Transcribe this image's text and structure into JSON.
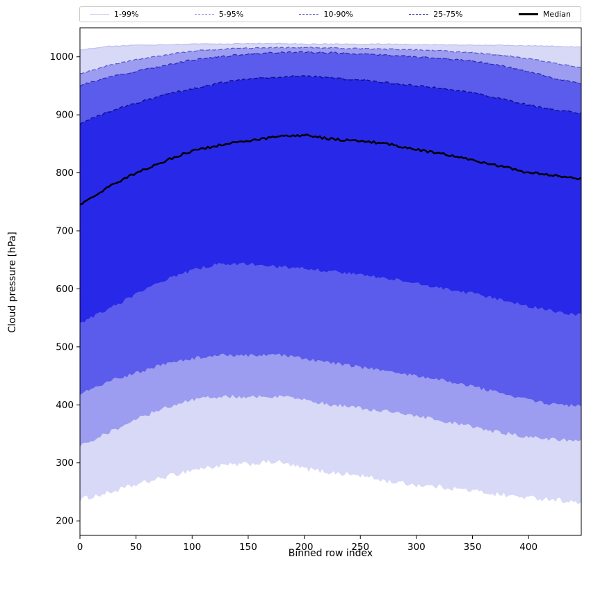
{
  "figure": {
    "xlabel": "Binned row index",
    "ylabel": "Cloud pressure [hPa]"
  },
  "legend": {
    "items": [
      {
        "label": "1-99%",
        "color": "#c9c9f2",
        "dash": "solid",
        "width": 1.2
      },
      {
        "label": "5-95%",
        "color": "#8a8ae0",
        "dash": "dashed",
        "width": 1.4
      },
      {
        "label": "10-90%",
        "color": "#4646c8",
        "dash": "dashed",
        "width": 1.4
      },
      {
        "label": "25-75%",
        "color": "#1c1c9e",
        "dash": "dashed",
        "width": 1.6
      },
      {
        "label": "Median",
        "color": "#000000",
        "dash": "solid",
        "width": 3
      }
    ]
  },
  "chart_data": {
    "type": "area",
    "title": "",
    "xlabel": "Binned row index",
    "ylabel": "Cloud pressure [hPa]",
    "xlim": [
      0,
      447
    ],
    "ylim": [
      175,
      1050
    ],
    "xticks": [
      0,
      50,
      100,
      150,
      200,
      250,
      300,
      350,
      400
    ],
    "yticks": [
      200,
      300,
      400,
      500,
      600,
      700,
      800,
      900,
      1000
    ],
    "grid": false,
    "legend_position": "top",
    "x": [
      0,
      25,
      50,
      75,
      100,
      125,
      150,
      175,
      200,
      225,
      250,
      275,
      300,
      325,
      350,
      375,
      400,
      425,
      447
    ],
    "series": [
      {
        "name": "p1",
        "values": [
          237,
          248,
          262,
          275,
          288,
          295,
          298,
          302,
          290,
          283,
          278,
          268,
          262,
          258,
          252,
          245,
          240,
          237,
          230
        ]
      },
      {
        "name": "p5",
        "values": [
          330,
          352,
          375,
          395,
          408,
          415,
          413,
          415,
          408,
          400,
          395,
          388,
          380,
          372,
          362,
          352,
          345,
          340,
          338
        ]
      },
      {
        "name": "p10",
        "values": [
          420,
          440,
          455,
          470,
          480,
          487,
          485,
          487,
          480,
          472,
          465,
          458,
          450,
          442,
          432,
          420,
          408,
          400,
          398
        ]
      },
      {
        "name": "p25",
        "values": [
          540,
          565,
          590,
          615,
          632,
          643,
          643,
          638,
          635,
          630,
          625,
          618,
          610,
          600,
          592,
          582,
          570,
          560,
          555
        ]
      },
      {
        "name": "p50",
        "values": [
          745,
          775,
          800,
          820,
          838,
          848,
          855,
          862,
          865,
          858,
          855,
          850,
          840,
          832,
          822,
          812,
          800,
          795,
          790
        ]
      },
      {
        "name": "p75",
        "values": [
          885,
          905,
          920,
          935,
          945,
          955,
          962,
          965,
          967,
          963,
          960,
          955,
          950,
          945,
          938,
          928,
          917,
          908,
          903
        ]
      },
      {
        "name": "p90",
        "values": [
          950,
          965,
          975,
          985,
          995,
          1000,
          1005,
          1007,
          1008,
          1007,
          1005,
          1003,
          1000,
          997,
          993,
          985,
          975,
          962,
          953
        ]
      },
      {
        "name": "p95",
        "values": [
          970,
          985,
          995,
          1003,
          1010,
          1013,
          1015,
          1016,
          1016,
          1015,
          1014,
          1013,
          1012,
          1010,
          1007,
          1003,
          997,
          988,
          982
        ]
      },
      {
        "name": "p99",
        "values": [
          1012,
          1018,
          1020,
          1021,
          1022,
          1022,
          1023,
          1023,
          1022,
          1022,
          1022,
          1022,
          1021,
          1021,
          1020,
          1020,
          1019,
          1018,
          1017
        ]
      }
    ],
    "bands": [
      {
        "name": "1-99%",
        "lower": "p1",
        "upper": "p99",
        "fill": "#d8d8f7"
      },
      {
        "name": "5-95%",
        "lower": "p5",
        "upper": "p95",
        "fill": "#9c9cf0"
      },
      {
        "name": "10-90%",
        "lower": "p10",
        "upper": "p90",
        "fill": "#5b5bec"
      },
      {
        "name": "25-75%",
        "lower": "p25",
        "upper": "p75",
        "fill": "#2828e8"
      }
    ],
    "edge_lines": [
      {
        "series": "p99",
        "color": "#bcbcee",
        "dash": "",
        "width": 1.1
      },
      {
        "series": "p95",
        "color": "#5454cc",
        "dash": "6,3",
        "width": 1.2
      },
      {
        "series": "p90",
        "color": "#2828ae",
        "dash": "6,3",
        "width": 1.2
      },
      {
        "series": "p75",
        "color": "#10108a",
        "dash": "6,3",
        "width": 1.4
      }
    ],
    "median": {
      "series": "p50",
      "label": "Median",
      "color": "#000000",
      "width": 2.5
    }
  }
}
